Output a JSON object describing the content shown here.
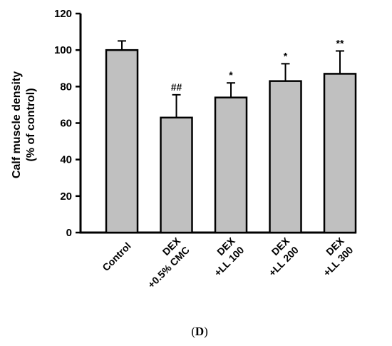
{
  "chart_data": {
    "type": "bar",
    "categories": [
      [
        "Control"
      ],
      [
        "DEX",
        "+0.5% CMC"
      ],
      [
        "DEX",
        "+LL 100"
      ],
      [
        "DEX",
        "+LL 200"
      ],
      [
        "DEX",
        "+LL 300"
      ]
    ],
    "values": [
      100,
      63,
      74,
      83,
      87
    ],
    "error": [
      5,
      12.5,
      8,
      9.5,
      12.5
    ],
    "significance": [
      "",
      "##",
      "*",
      "*",
      "**"
    ],
    "ylabel": [
      "Calf muscle density",
      "(% of control)"
    ],
    "ylim": [
      0,
      120
    ],
    "yticks": [
      0,
      20,
      40,
      60,
      80,
      100,
      120
    ],
    "bar_color": "#c0c0c0",
    "grid": false,
    "panel_label": {
      "open": "(",
      "letter": "D",
      "close": ")"
    }
  }
}
